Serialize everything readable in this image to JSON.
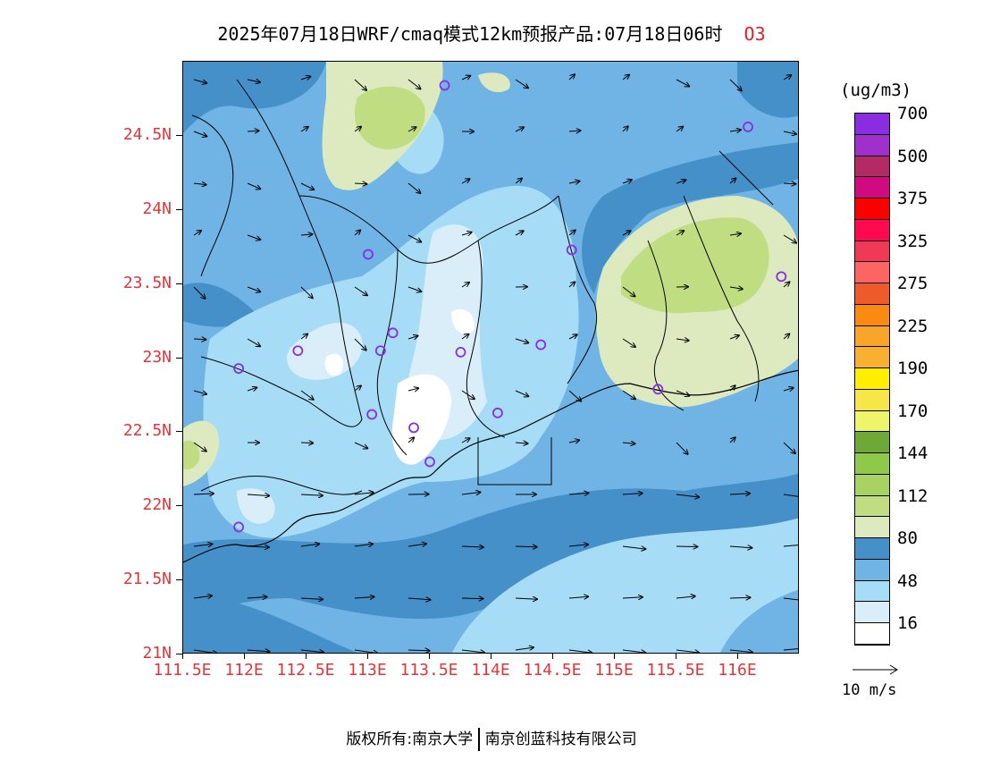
{
  "title": {
    "main": "2025年07月18日WRF/cmaq模式12km预报产品:07月18日06时",
    "pollutant": "O3"
  },
  "map": {
    "lon_range": [
      111.5,
      116.5
    ],
    "lat_range": [
      21.0,
      25.0
    ],
    "y_ticks": [
      {
        "lat": 24.5,
        "label": "24.5N"
      },
      {
        "lat": 24.0,
        "label": "24N"
      },
      {
        "lat": 23.5,
        "label": "23.5N"
      },
      {
        "lat": 23.0,
        "label": "23N"
      },
      {
        "lat": 22.5,
        "label": "22.5N"
      },
      {
        "lat": 22.0,
        "label": "22N"
      },
      {
        "lat": 21.5,
        "label": "21.5N"
      },
      {
        "lat": 21.0,
        "label": "21N"
      }
    ],
    "x_ticks": [
      {
        "lon": 111.5,
        "label": "111.5E"
      },
      {
        "lon": 112.0,
        "label": "112E"
      },
      {
        "lon": 112.5,
        "label": "112.5E"
      },
      {
        "lon": 113.0,
        "label": "113E"
      },
      {
        "lon": 113.5,
        "label": "113.5E"
      },
      {
        "lon": 114.0,
        "label": "114E"
      },
      {
        "lon": 114.5,
        "label": "114.5E"
      },
      {
        "lon": 115.0,
        "label": "115E"
      },
      {
        "lon": 115.5,
        "label": "115.5E"
      },
      {
        "lon": 116.0,
        "label": "116E"
      }
    ],
    "stations": [
      [
        113.62,
        24.84
      ],
      [
        116.08,
        24.56
      ],
      [
        113.0,
        23.7
      ],
      [
        114.65,
        23.73
      ],
      [
        116.35,
        23.55
      ],
      [
        112.43,
        23.05
      ],
      [
        113.1,
        23.05
      ],
      [
        113.2,
        23.17
      ],
      [
        113.75,
        23.04
      ],
      [
        114.4,
        23.09
      ],
      [
        111.95,
        22.93
      ],
      [
        115.35,
        22.79
      ],
      [
        113.03,
        22.62
      ],
      [
        113.37,
        22.53
      ],
      [
        114.05,
        22.63
      ],
      [
        113.5,
        22.3
      ],
      [
        111.95,
        21.86
      ]
    ]
  },
  "colorbar": {
    "unit": "(ug/m3)",
    "colors": [
      "#ffffff",
      "#daeefa",
      "#a6dcf6",
      "#6fb4e4",
      "#4590c8",
      "#dde9bf",
      "#c0dd82",
      "#a8d262",
      "#8ec94a",
      "#6ea836",
      "#eef56a",
      "#f6e648",
      "#ffee00",
      "#f7b030",
      "#f8a52a",
      "#fb8a10",
      "#ee5a2a",
      "#ff6464",
      "#ee3a56",
      "#ff0a50",
      "#fc0000",
      "#d20a82",
      "#b42a64",
      "#a030cc",
      "#8a2de2"
    ],
    "labels": [
      {
        "after_index": 1,
        "text": "16"
      },
      {
        "after_index": 3,
        "text": "48"
      },
      {
        "after_index": 5,
        "text": "80"
      },
      {
        "after_index": 7,
        "text": "112"
      },
      {
        "after_index": 9,
        "text": "144"
      },
      {
        "after_index": 11,
        "text": "170"
      },
      {
        "after_index": 13,
        "text": "190"
      },
      {
        "after_index": 15,
        "text": "225"
      },
      {
        "after_index": 17,
        "text": "275"
      },
      {
        "after_index": 19,
        "text": "325"
      },
      {
        "after_index": 21,
        "text": "375"
      },
      {
        "after_index": 23,
        "text": "500"
      },
      {
        "after_index": 25,
        "text": "700"
      }
    ]
  },
  "wind_key": {
    "label": "10 m/s"
  },
  "footer": {
    "left": "版权所有:南京大学",
    "right": "南京创蓝科技有限公司"
  }
}
